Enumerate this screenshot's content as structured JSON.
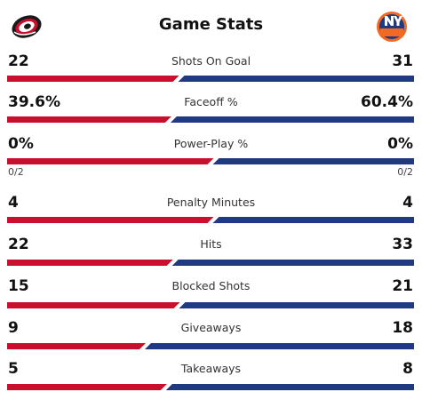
{
  "header": {
    "title": "Game Stats",
    "away_logo_icon": "hurricanes-logo-icon",
    "home_logo_icon": "islanders-logo-icon"
  },
  "colors": {
    "away": "#c8102e",
    "home": "#1f3a82",
    "gap": "#ffffff"
  },
  "stats": [
    {
      "label": "Shots On Goal",
      "away": "22",
      "home": "31",
      "away_share": 0.415
    },
    {
      "label": "Faceoff %",
      "away": "39.6%",
      "home": "60.4%",
      "away_share": 0.396
    },
    {
      "label": "Power-Play %",
      "away": "0%",
      "home": "0%",
      "away_share": 0.5,
      "away_sub": "0/2",
      "home_sub": "0/2"
    },
    {
      "label": "Penalty Minutes",
      "away": "4",
      "home": "4",
      "away_share": 0.5
    },
    {
      "label": "Hits",
      "away": "22",
      "home": "33",
      "away_share": 0.4
    },
    {
      "label": "Blocked Shots",
      "away": "15",
      "home": "21",
      "away_share": 0.417
    },
    {
      "label": "Giveaways",
      "away": "9",
      "home": "18",
      "away_share": 0.333
    },
    {
      "label": "Takeaways",
      "away": "5",
      "home": "8",
      "away_share": 0.385
    }
  ]
}
